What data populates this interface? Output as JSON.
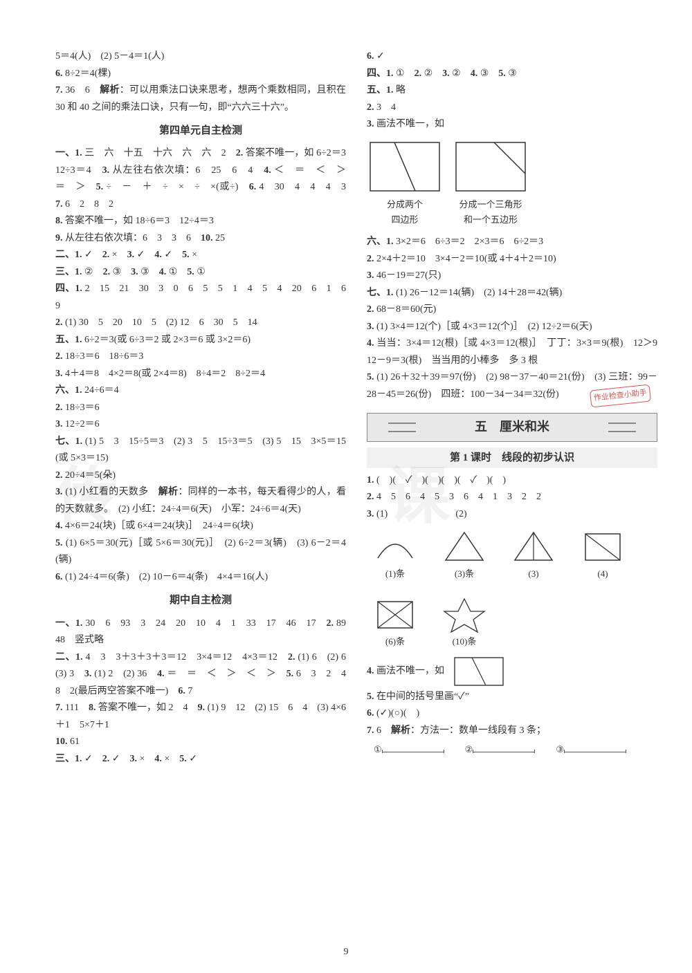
{
  "page_number": "9",
  "watermarks": {
    "left": "传",
    "right": "课"
  },
  "stamp": "作业检查小助手",
  "left_col": {
    "pre": [
      "5＝4(人)　(2) 5－4＝1(人)",
      "<span class='b'>6.</span> 8÷2＝4(棵)",
      "<span class='b'>7.</span> 36　6　<span class='b'>解析</span>：可以用乘法口诀来思考，想两个乘数相同，且积在 30 和 40 之间的乘法口诀，只有一句，即“六六三十六”。"
    ],
    "h1": "第四单元自主检测",
    "unit4": [
      "<span class='b'>一、1.</span> 三　六　十五　十六　六　六　2　<span class='b'>2.</span> 答案不唯一，如 6÷2＝3　12÷3＝4　<span class='b'>3.</span> 从左往右依次填：6　25　6　4　<span class='b'>4.</span> ＜　＝　＜　＞　＝　＞　<span class='b'>5.</span> ÷　－　＋　÷　×　÷　×(或÷)　<span class='b'>6.</span> 4　30　4　4　4　3　<span class='b'>7.</span> 6　2　8　2",
      "<span class='b'>8.</span> 答案不唯一，如 18÷6＝3　12÷4＝3",
      "<span class='b'>9.</span> 从左往右依次填：6　3　3　6　<span class='b'>10.</span> 25",
      "<span class='b'>二、1.</span> ✓　<span class='b'>2.</span> ×　<span class='b'>3.</span> ✓　<span class='b'>4.</span> ✓　<span class='b'>5.</span> ×",
      "<span class='b'>三、1.</span> ②　<span class='b'>2.</span> ③　<span class='b'>3.</span> ③　<span class='b'>4.</span> ①　<span class='b'>5.</span> ①",
      "<span class='b'>四、1.</span> 2　15　21　30　3　0　6　5　5　1　4　5　4　20　6　1　6　9",
      "<span class='b'>2.</span> (1) 30　5　20　10　5　(2) 12　6　30　5　14",
      "<span class='b'>五、1.</span> 6÷2＝3(或 6÷3＝2 或 2×3＝6 或 3×2＝6)",
      "<span class='b'>2.</span> 18÷3＝6　18÷6＝3",
      "<span class='b'>3.</span> 4＋4＝8　4×2＝8(或 2×4＝8)　8÷4＝2　8÷2＝4",
      "<span class='b'>六、1.</span> 24÷6＝4",
      "<span class='b'>2.</span> 18÷3＝6",
      "<span class='b'>3.</span> 12÷2＝6",
      "<span class='b'>七、1.</span> (1) 5　3　15÷5＝3　(2) 3　5　15÷3＝5　(3) 5　15　3×5＝15(或 5×3＝15)",
      "<span class='b'>2.</span> 20÷4＝5(朵)",
      "<span class='b'>3.</span> (1) 小红看的天数多　<span class='b'>解析</span>：同样的一本书，每天看得少的人，看的天数就多。　(2) 小红：24÷4＝6(天)　小军：24÷6＝4(天)",
      "<span class='b'>4.</span> 4×6＝24(块)［或 6×4＝24(块)］　24÷4＝6(块)",
      "<span class='b'>5.</span> (1) 6×5＝30(元)［或 5×6＝30(元)］　(2) 6÷2＝3(辆)　(3) 6－2＝4(辆)",
      "<span class='b'>6.</span> (1) 24÷4＝6(条)　(2) 10－6＝4(条)　4×4＝16(人)"
    ],
    "h2": "期中自主检测",
    "mid": [
      "<span class='b'>一、1.</span> 30　6　93　3　24　20　10　4　1　33　17　46　17　<span class='b'>2.</span> 89　48　竖式略",
      "<span class='b'>二、1.</span> 4　3　3＋3＋3＋3＝12　3×4＝12　4×3＝12　<span class='b'>2.</span> (1) 6　(2) 6　(3) 3　<span class='b'>3.</span> (1) 2　(2) 36　<span class='b'>4.</span> ＝　＝　＜　＞　＜　＞　<span class='b'>5.</span> 6　3　2　4　8　2(最后两空答案不唯一)　<span class='b'>6.</span> 7",
      "<span class='b'>7.</span> 111　<span class='b'>8.</span> 答案不唯一，如 2　4　<span class='b'>9.</span> (1) 9　12　(2) 15　6　4　(3) 4×6＋1　5×7＋1",
      "<span class='b'>10.</span> 61",
      "<span class='b'>三、1.</span> ✓　<span class='b'>2.</span> ✓　<span class='b'>3.</span> ×　<span class='b'>4.</span> ×　<span class='b'>5.</span> ✓"
    ]
  },
  "right_col": {
    "top": [
      "<span class='b'>6.</span> ✓",
      "<span class='b'>四、1.</span> ①　<span class='b'>2.</span> ②　<span class='b'>3.</span> ②　<span class='b'>4.</span> ③　<span class='b'>5.</span> ③",
      "<span class='b'>五、1.</span> 略",
      "<span class='b'>2.</span> 3　4",
      "<span class='b'>3.</span> 画法不唯一，如"
    ],
    "fig_labels": {
      "a": "分成两个\n四边形",
      "b": "分成一个三角形\n和一个五边形"
    },
    "after_fig": [
      "<span class='b'>六、1.</span> 3×2＝6　6÷3＝2　2×3＝6　6÷2＝3",
      "<span class='b'>2.</span> 2×4＋2＝10　3×4－2＝10(或 4＋4＋2＝10)",
      "<span class='b'>3.</span> 46－19＝27(只)",
      "<span class='b'>七、1.</span> (1) 26－12＝14(辆)　(2) 14＋28＝42(辆)",
      "<span class='b'>2.</span> 68－8＝60(元)",
      "<span class='b'>3.</span> (1) 3×4＝12(个)［或 4×3＝12(个)］　(2) 12÷2＝6(天)",
      "<span class='b'>4.</span> 当当：3×4＝12(根)［或 4×3＝12(根)］　丁丁：3×3＝9(根)　12＞9　12－9＝3(根)　当当用的小棒多　多 3 根",
      "<span class='b'>5.</span> (1) 26＋32＋39＝97(份)　(2) 98－37－40＝21(份)　(3) 三班：99－28－45＝26(份)　四班：100－34－34＝32(份)"
    ],
    "unit5_heading": "五　厘米和米",
    "lesson1_heading": "第 1 课时　线段的初步认识",
    "lesson1": [
      "<span class='b'>1.</span> (　)(　✓　)(　)(　)(　✓　)(　)",
      "<span class='b'>2.</span> 4　5　6　4　5　3　6　4　1　3　2　2",
      "<span class='b'>3.</span> (1)　　　　　　　(2)"
    ],
    "shapes": [
      {
        "label": "(1)条"
      },
      {
        "label": "(3)条"
      },
      {
        "label": "(3)"
      },
      {
        "label": "(4)"
      },
      {
        "label": "(6)条"
      },
      {
        "label": "(10)条"
      }
    ],
    "after_shapes": [
      "<span class='b'>4.</span> 画法不唯一，如",
      "<span class='b'>5.</span> 在中间的括号里画“✓”",
      "<span class='b'>6.</span> (✓)(○)(　)",
      "<span class='b'>7.</span> 6　<span class='b'>解析</span>：方法一：数单一线段有 3 条；"
    ],
    "seg_labels": [
      "①",
      "②",
      "③"
    ]
  }
}
